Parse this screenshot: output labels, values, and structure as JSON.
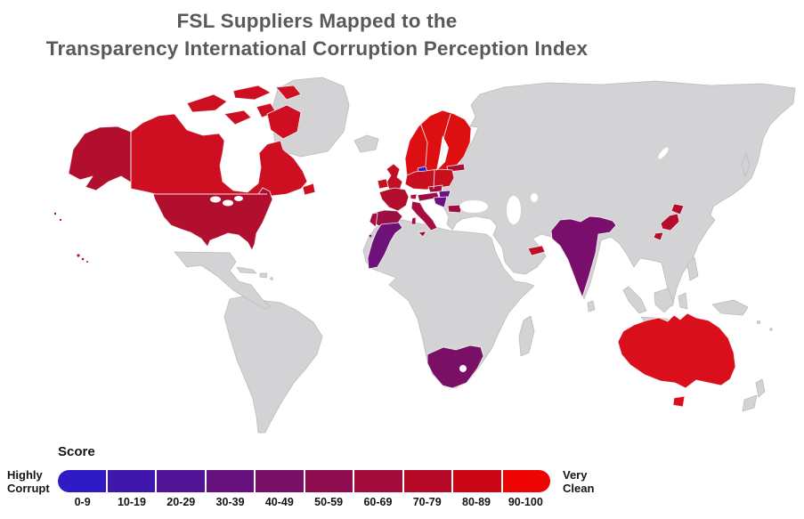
{
  "title": {
    "line1": "FSL Suppliers Mapped to the",
    "line2": "Transparency International Corruption Perception Index"
  },
  "legend": {
    "title": "Score",
    "left_label_line1": "Highly",
    "left_label_line2": "Corrupt",
    "right_label_line1": "Very",
    "right_label_line2": "Clean",
    "buckets": [
      {
        "label": "0-9",
        "color": "#2f1ac6"
      },
      {
        "label": "10-19",
        "color": "#3f17ad"
      },
      {
        "label": "20-29",
        "color": "#521496"
      },
      {
        "label": "30-39",
        "color": "#66117e"
      },
      {
        "label": "40-49",
        "color": "#7a0f67"
      },
      {
        "label": "50-59",
        "color": "#8e0d51"
      },
      {
        "label": "60-69",
        "color": "#a30b3d"
      },
      {
        "label": "70-79",
        "color": "#b70928"
      },
      {
        "label": "80-89",
        "color": "#cc0715"
      },
      {
        "label": "90-100",
        "color": "#ee0503"
      }
    ]
  },
  "map": {
    "ocean_color": "#ffffff",
    "land_color": "#d3d3d5",
    "land_border_color": "#bcbcbe",
    "country_border_color": "#f2efef",
    "sea_fill": "#ffffff",
    "region_colors": {
      "land": "#d3d3d5",
      "canada": "#ce0f22",
      "usa": "#b20e2e",
      "scandinavia": "#dd0f10",
      "denmark": "#2b1fc7",
      "baltics": "#ac0d33",
      "uk": "#c30f23",
      "ireland": "#c6101f",
      "germany_poland": "#c90e1e",
      "czech": "#a60e3c",
      "austria": "#9c0d46",
      "switzerland": "#b30e30",
      "france": "#b40e2f",
      "spain": "#9d0e44",
      "portugal": "#a50e3c",
      "italy": "#a50c41",
      "hungary": "#6d1086",
      "balkans": "#6d1086",
      "bulgaria": "#9c0d40",
      "morocco": "#6e1179",
      "south_africa": "#7a0f66",
      "india": "#7a0e6c",
      "uae": "#c00d2a",
      "japan": "#b60c2c",
      "australia": "#d9101b"
    }
  }
}
